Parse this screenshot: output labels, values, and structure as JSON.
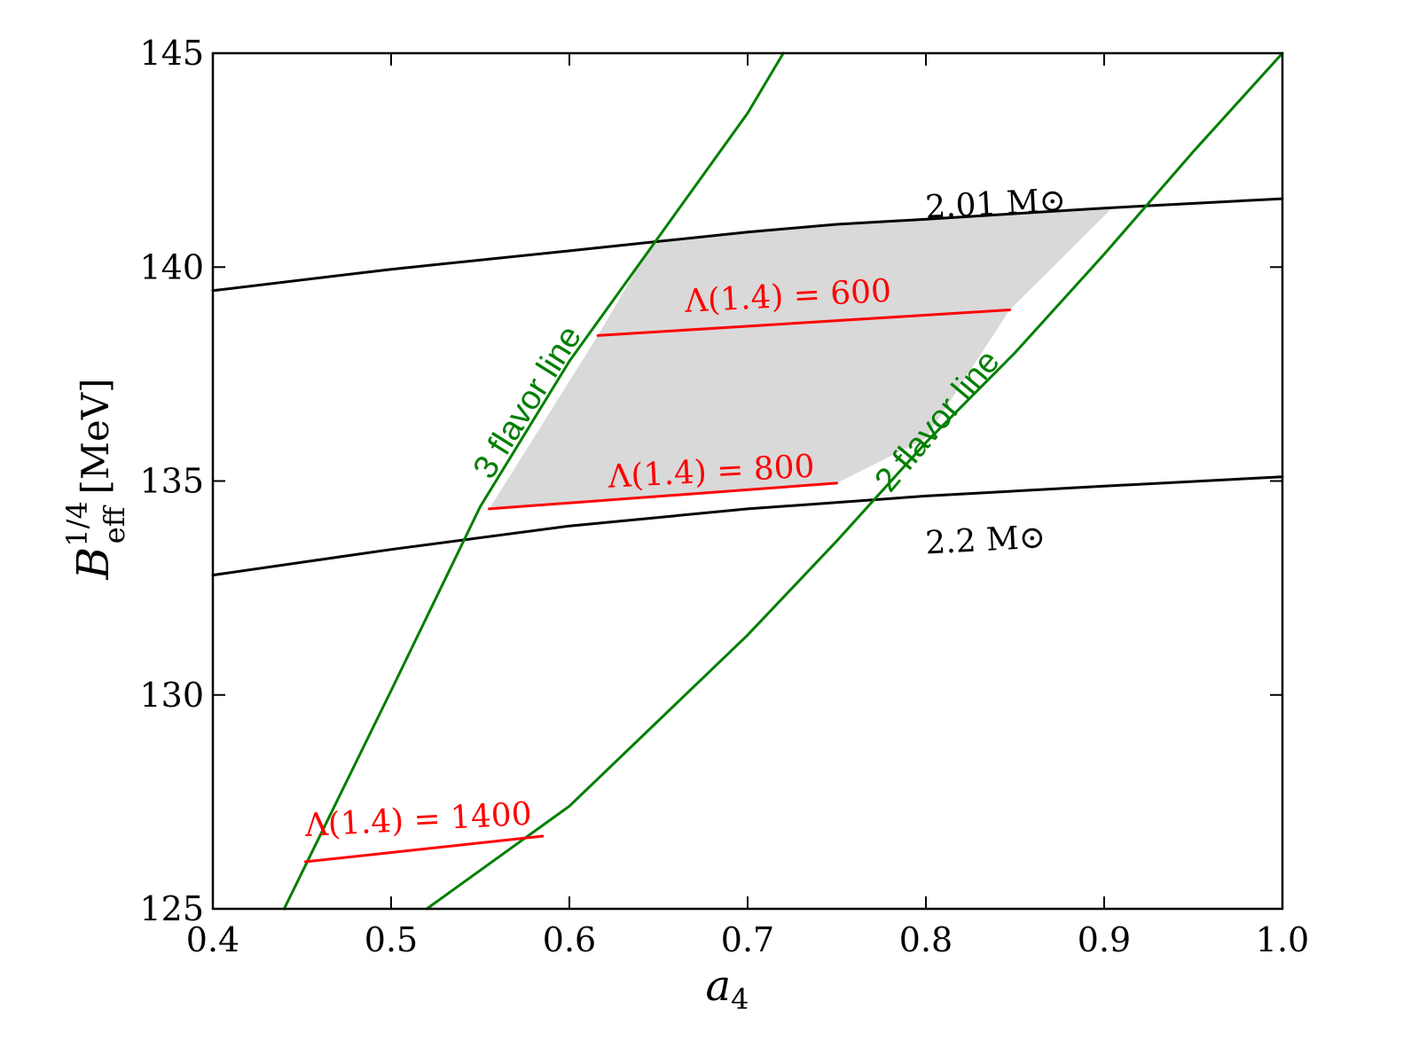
{
  "chart_data": {
    "type": "line",
    "title": "",
    "xlabel": "a",
    "xlabel_sub": "4",
    "ylabel": "B",
    "ylabel_sup": "1/4",
    "ylabel_sub": "eff",
    "ylabel_unit": "[MeV]",
    "xlim": [
      0.4,
      1.0
    ],
    "ylim": [
      125,
      145
    ],
    "xticks": [
      0.4,
      0.5,
      0.6,
      0.7,
      0.8,
      0.9,
      1.0
    ],
    "xtick_labels": [
      "0.4",
      "0.5",
      "0.6",
      "0.7",
      "0.8",
      "0.9",
      "1.0"
    ],
    "yticks": [
      125,
      130,
      135,
      140,
      145
    ],
    "ytick_labels": [
      "125",
      "130",
      "135",
      "140",
      "145"
    ],
    "grid": false,
    "colors": {
      "mass": "#000000",
      "flavor": "#007f00",
      "lambda": "#ff0000",
      "region": "#d9d9d9"
    },
    "series": [
      {
        "x": [
          0.4,
          0.5,
          0.6,
          0.65,
          0.7,
          0.75,
          0.8,
          0.9,
          1.0
        ],
        "y": [
          139.45,
          139.95,
          140.38,
          140.6,
          140.82,
          141.0,
          141.12,
          141.38,
          141.6
        ],
        "color": "mass"
      },
      {
        "x": [
          0.4,
          0.5,
          0.6,
          0.7,
          0.8,
          0.9,
          1.0
        ],
        "y": [
          132.8,
          133.4,
          133.95,
          134.35,
          134.65,
          134.88,
          135.1
        ],
        "color": "mass"
      },
      {
        "x": [
          0.44,
          0.5,
          0.55,
          0.6,
          0.65,
          0.7,
          0.72
        ],
        "y": [
          125.0,
          130.1,
          134.4,
          137.8,
          140.7,
          143.6,
          145.0
        ],
        "color": "flavor"
      },
      {
        "x": [
          0.52,
          0.6,
          0.7,
          0.75,
          0.8,
          0.85,
          0.9,
          0.95,
          1.0
        ],
        "y": [
          125.0,
          127.4,
          131.4,
          133.6,
          135.9,
          138.0,
          140.3,
          142.7,
          145.0
        ],
        "color": "flavor"
      },
      {
        "x": [
          0.616,
          0.847
        ],
        "y": [
          138.4,
          139.0
        ],
        "color": "lambda"
      },
      {
        "x": [
          0.555,
          0.75
        ],
        "y": [
          134.35,
          134.95
        ],
        "color": "lambda"
      },
      {
        "x": [
          0.452,
          0.585
        ],
        "y": [
          126.1,
          126.7
        ],
        "color": "lambda"
      }
    ],
    "shaded_region": {
      "x": [
        0.555,
        0.6,
        0.647,
        0.75,
        0.8,
        0.847,
        0.905,
        0.8,
        0.7,
        0.647,
        0.616
      ],
      "y": [
        134.35,
        134.5,
        134.62,
        134.95,
        136.0,
        139.0,
        141.4,
        141.12,
        140.82,
        140.6,
        138.4
      ]
    },
    "annotations": [
      {
        "text": "2.01 M⊙",
        "x": 0.8,
        "y": 141.15,
        "rotate": -3,
        "style": "black"
      },
      {
        "text": "2.2 M⊙",
        "x": 0.8,
        "y": 133.3,
        "rotate": -3,
        "style": "black"
      },
      {
        "text": "Λ(1.4) = 600",
        "x": 0.665,
        "y": 138.95,
        "rotate": -3,
        "style": "red"
      },
      {
        "text": "Λ(1.4) = 800",
        "x": 0.622,
        "y": 134.85,
        "rotate": -3,
        "style": "red"
      },
      {
        "text": "Λ(1.4) = 1400",
        "x": 0.452,
        "y": 126.7,
        "rotate": -3,
        "style": "red"
      },
      {
        "text": "3 flavor line",
        "x": 0.556,
        "y": 135.0,
        "rotate": -58,
        "style": "green"
      },
      {
        "text": "2 flavor line",
        "x": 0.78,
        "y": 134.7,
        "rotate": -50,
        "style": "green"
      }
    ]
  }
}
